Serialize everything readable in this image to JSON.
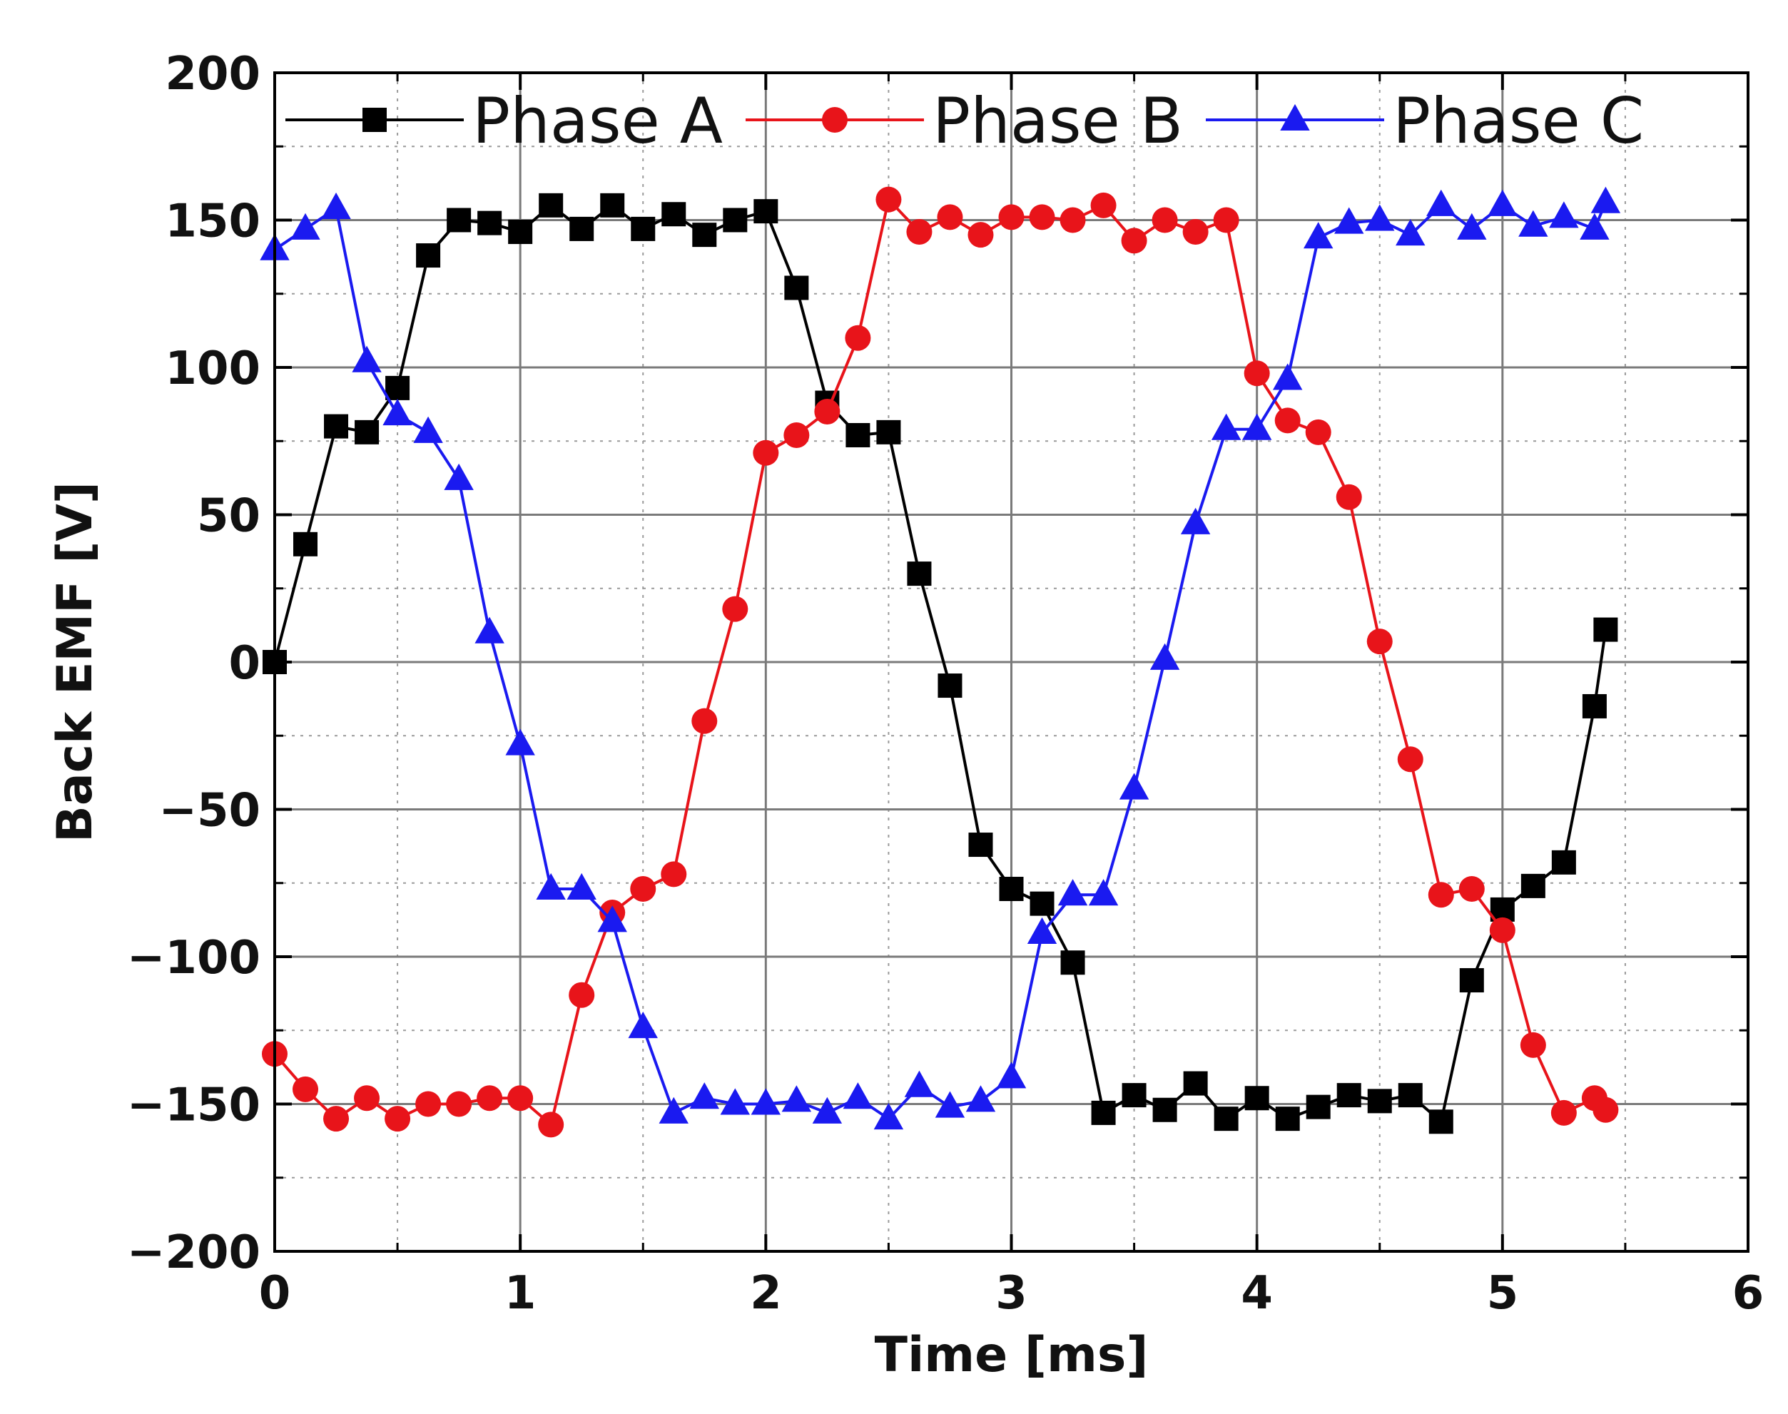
{
  "chart_data": {
    "type": "line",
    "title": "",
    "xlabel": "Time [ms]",
    "ylabel": "Back EMF [V]",
    "xlim": [
      0,
      6
    ],
    "ylim": [
      -200,
      200
    ],
    "xticks": [
      "0",
      "1",
      "2",
      "3",
      "4",
      "5",
      "6"
    ],
    "yticks": [
      "200",
      "150",
      "100",
      "50",
      "0",
      "−50",
      "−100",
      "−150",
      "−200"
    ],
    "xtick_values": [
      0,
      1,
      2,
      3,
      4,
      5,
      6
    ],
    "ytick_values": [
      200,
      150,
      100,
      50,
      0,
      -50,
      -100,
      -150,
      -200
    ],
    "grid": true,
    "legend_position": "top",
    "series": [
      {
        "name": "Phase A",
        "color": "#000000",
        "marker": "square",
        "x": [
          0,
          0.125,
          0.25,
          0.375,
          0.5,
          0.625,
          0.75,
          0.875,
          1.0,
          1.125,
          1.25,
          1.375,
          1.5,
          1.625,
          1.75,
          1.875,
          2.0,
          2.125,
          2.25,
          2.375,
          2.5,
          2.625,
          2.75,
          2.875,
          3.0,
          3.125,
          3.25,
          3.375,
          3.5,
          3.625,
          3.75,
          3.875,
          4.0,
          4.125,
          4.25,
          4.375,
          4.5,
          4.625,
          4.75,
          4.875,
          5.0,
          5.125,
          5.25,
          5.375,
          5.42
        ],
        "y": [
          0,
          40,
          80,
          78,
          93,
          138,
          150,
          149,
          146,
          155,
          147,
          155,
          147,
          152,
          145,
          150,
          153,
          127,
          88,
          77,
          78,
          30,
          -8,
          -62,
          -77,
          -82,
          -102,
          -153,
          -147,
          -152,
          -143,
          -155,
          -148,
          -155,
          -151,
          -147,
          -149,
          -147,
          -156,
          -108,
          -84,
          -76,
          -68,
          -15,
          11
        ]
      },
      {
        "name": "Phase B",
        "color": "#e8141a",
        "marker": "circle",
        "x": [
          0,
          0.125,
          0.25,
          0.375,
          0.5,
          0.625,
          0.75,
          0.875,
          1.0,
          1.125,
          1.25,
          1.375,
          1.5,
          1.625,
          1.75,
          1.875,
          2.0,
          2.125,
          2.25,
          2.375,
          2.5,
          2.625,
          2.75,
          2.875,
          3.0,
          3.125,
          3.25,
          3.375,
          3.5,
          3.625,
          3.75,
          3.875,
          4.0,
          4.125,
          4.25,
          4.375,
          4.5,
          4.625,
          4.75,
          4.875,
          5.0,
          5.125,
          5.25,
          5.375,
          5.42
        ],
        "y": [
          -133,
          -145,
          -155,
          -148,
          -155,
          -150,
          -150,
          -148,
          -148,
          -157,
          -113,
          -85,
          -77,
          -72,
          -20,
          18,
          71,
          77,
          85,
          110,
          157,
          146,
          151,
          145,
          151,
          151,
          150,
          155,
          143,
          150,
          146,
          150,
          98,
          82,
          78,
          56,
          7,
          -33,
          -79,
          -77,
          -91,
          -130,
          -153,
          -148,
          -152
        ]
      },
      {
        "name": "Phase C",
        "color": "#1a1af0",
        "marker": "triangle",
        "x": [
          0,
          0.125,
          0.25,
          0.375,
          0.5,
          0.625,
          0.75,
          0.875,
          1.0,
          1.125,
          1.25,
          1.375,
          1.5,
          1.625,
          1.75,
          1.875,
          2.0,
          2.125,
          2.25,
          2.375,
          2.5,
          2.625,
          2.75,
          2.875,
          3.0,
          3.125,
          3.25,
          3.375,
          3.5,
          3.625,
          3.75,
          3.875,
          4.0,
          4.125,
          4.25,
          4.375,
          4.5,
          4.625,
          4.75,
          4.875,
          5.0,
          5.125,
          5.25,
          5.375,
          5.42
        ],
        "y": [
          140,
          147,
          154,
          102,
          84,
          78,
          62,
          10,
          -28,
          -77,
          -77,
          -88,
          -124,
          -153,
          -148,
          -150,
          -150,
          -149,
          -153,
          -148,
          -155,
          -144,
          -151,
          -149,
          -141,
          -92,
          -79,
          -79,
          -43,
          1,
          47,
          79,
          79,
          96,
          144,
          149,
          150,
          145,
          155,
          147,
          155,
          148,
          151,
          147,
          156
        ]
      }
    ]
  }
}
